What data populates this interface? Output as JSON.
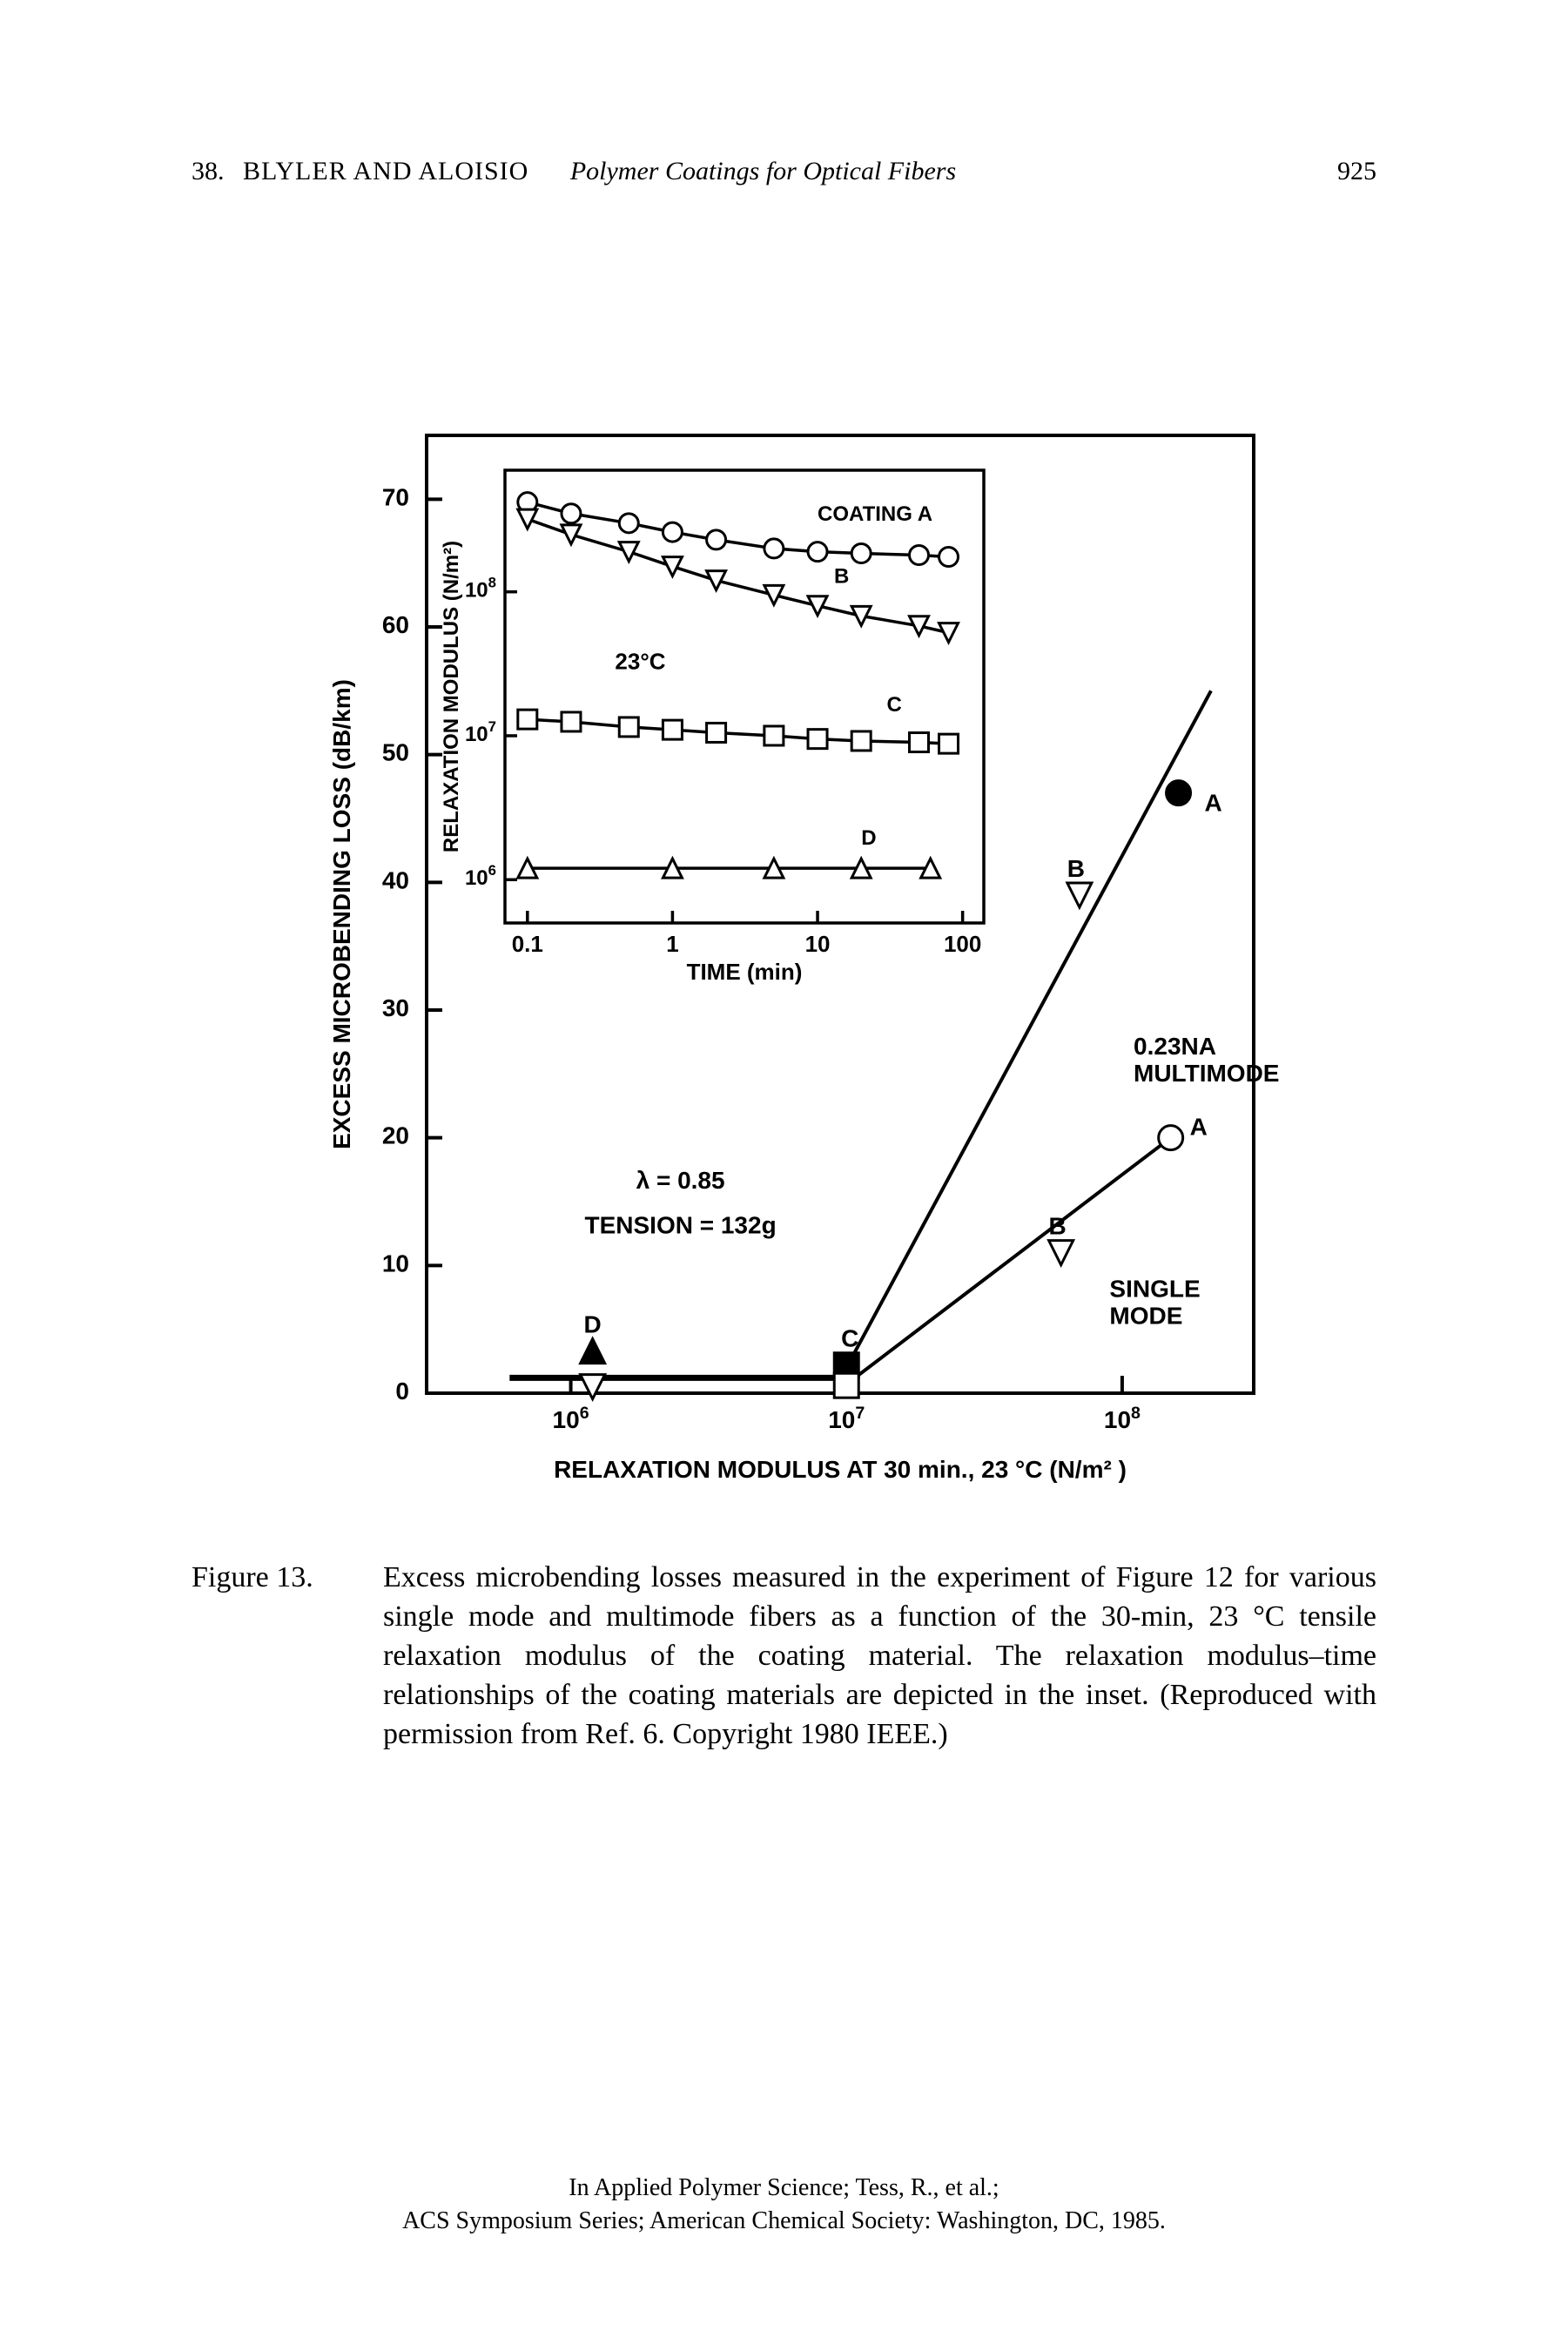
{
  "header": {
    "chapter": "38.",
    "authors": "BLYLER AND ALOISIO",
    "title": "Polymer Coatings for Optical Fibers",
    "page": "925"
  },
  "main_chart": {
    "type": "scatter-line",
    "x_label": "RELAXATION MODULUS AT 30 min., 23 °C (N/m² )",
    "y_label": "EXCESS MICROBENDING LOSS (dB/km)",
    "x_scale": "log",
    "x_ticks": [
      1000000.0,
      10000000.0,
      100000000.0
    ],
    "x_tick_labels": [
      "10⁶",
      "10⁷",
      "10⁸"
    ],
    "y_ticks": [
      0,
      10,
      20,
      30,
      40,
      50,
      60,
      70
    ],
    "xlim": [
      300000.0,
      300000000.0
    ],
    "ylim": [
      0,
      75
    ],
    "annotations": {
      "lambda": "λ = 0.85",
      "tension": "TENSION = 132g",
      "multimode": "0.23NA\nMULTIMODE",
      "singlemode": "SINGLE\nMODE"
    },
    "points": {
      "D_up": {
        "x": 1200000.0,
        "y": 3.3,
        "marker": "triangle-up-filled",
        "label": "D"
      },
      "D_down": {
        "x": 1200000.0,
        "y": 0.5,
        "marker": "triangle-down-open"
      },
      "C_sq": {
        "x": 10000000.0,
        "y": 2.2,
        "marker": "square-filled",
        "label": "C"
      },
      "C_sq2": {
        "x": 10000000.0,
        "y": 0.6,
        "marker": "square-open"
      },
      "B_tri": {
        "x": 70000000.0,
        "y": 39,
        "marker": "triangle-down-open",
        "label": "B"
      },
      "B_tri2": {
        "x": 60000000.0,
        "y": 11,
        "marker": "triangle-down-open",
        "label": "B"
      },
      "A_dot": {
        "x": 160000000.0,
        "y": 47,
        "marker": "circle-filled",
        "label": "A"
      },
      "A_open": {
        "x": 150000000.0,
        "y": 20,
        "marker": "circle-open",
        "label": "A"
      }
    },
    "lines": {
      "multimode": [
        {
          "x": 10000000.0,
          "y": 2.0
        },
        {
          "x": 210000000.0,
          "y": 55
        }
      ],
      "singlemode": [
        {
          "x": 10000000.0,
          "y": 0.7
        },
        {
          "x": 150000000.0,
          "y": 20
        }
      ],
      "baseline": [
        {
          "x": 600000.0,
          "y": 1.2
        },
        {
          "x": 10000000.0,
          "y": 1.2
        }
      ]
    },
    "stroke_color": "#000000",
    "background_color": "#ffffff",
    "axis_width": 4,
    "line_width": 4,
    "marker_size": 14,
    "font_family": "Arial, Helvetica, sans-serif",
    "label_fontsize": 28,
    "tick_fontsize": 28
  },
  "inset_chart": {
    "type": "line",
    "title_inside": "23°C",
    "x_label": "TIME (min)",
    "y_label": "RELAXATION MODULUS (N/m²)",
    "x_scale": "log",
    "y_scale": "log",
    "x_ticks": [
      0.1,
      1,
      10,
      100
    ],
    "x_tick_labels": [
      "0.1",
      "1",
      "10",
      "100"
    ],
    "y_ticks": [
      1000000.0,
      10000000.0,
      100000000.0
    ],
    "y_tick_labels": [
      "10⁶",
      "10⁷",
      "10⁸"
    ],
    "xlim": [
      0.07,
      140
    ],
    "ylim": [
      500000.0,
      700000000.0
    ],
    "series": {
      "A": {
        "label": "COATING A",
        "marker": "circle-open",
        "data": [
          [
            0.1,
            420000000.0
          ],
          [
            0.2,
            350000000.0
          ],
          [
            0.5,
            300000000.0
          ],
          [
            1,
            260000000.0
          ],
          [
            2,
            230000000.0
          ],
          [
            5,
            200000000.0
          ],
          [
            10,
            190000000.0
          ],
          [
            20,
            185000000.0
          ],
          [
            50,
            180000000.0
          ],
          [
            80,
            175000000.0
          ]
        ]
      },
      "B": {
        "label": "B",
        "marker": "triangle-down-open",
        "data": [
          [
            0.1,
            320000000.0
          ],
          [
            0.2,
            250000000.0
          ],
          [
            0.5,
            190000000.0
          ],
          [
            1,
            150000000.0
          ],
          [
            2,
            120000000.0
          ],
          [
            5,
            95000000.0
          ],
          [
            10,
            80000000.0
          ],
          [
            20,
            68000000.0
          ],
          [
            50,
            58000000.0
          ],
          [
            80,
            52000000.0
          ]
        ]
      },
      "C": {
        "label": "C",
        "marker": "square-open",
        "data": [
          [
            0.1,
            13000000.0
          ],
          [
            0.2,
            12500000.0
          ],
          [
            0.5,
            11500000.0
          ],
          [
            1,
            11000000.0
          ],
          [
            2,
            10500000.0
          ],
          [
            5,
            10000000.0
          ],
          [
            10,
            9500000.0
          ],
          [
            20,
            9200000.0
          ],
          [
            50,
            9000000.0
          ],
          [
            80,
            8800000.0
          ]
        ]
      },
      "D": {
        "label": "D",
        "marker": "triangle-up-open",
        "data": [
          [
            0.1,
            1200000.0
          ],
          [
            1,
            1200000.0
          ],
          [
            5,
            1200000.0
          ],
          [
            20,
            1200000.0
          ],
          [
            60,
            1200000.0
          ]
        ]
      }
    },
    "stroke_color": "#000000",
    "axis_width": 3.5,
    "line_width": 3.5,
    "marker_size": 11
  },
  "caption": {
    "label": "Figure 13.",
    "text": "Excess microbending losses measured in the experiment of Figure 12 for various single mode and multimode fibers as a function of the 30-min, 23 °C tensile relaxation modulus of the coating material.  The relaxation modulus–time relationships of the coating materials are depicted in the inset.  (Reproduced with permission from Ref. 6.  Copyright 1980 IEEE.)"
  },
  "footer": {
    "line1": "In Applied Polymer Science; Tess, R., et al.;",
    "line2": "ACS Symposium Series; American Chemical Society: Washington, DC, 1985."
  }
}
